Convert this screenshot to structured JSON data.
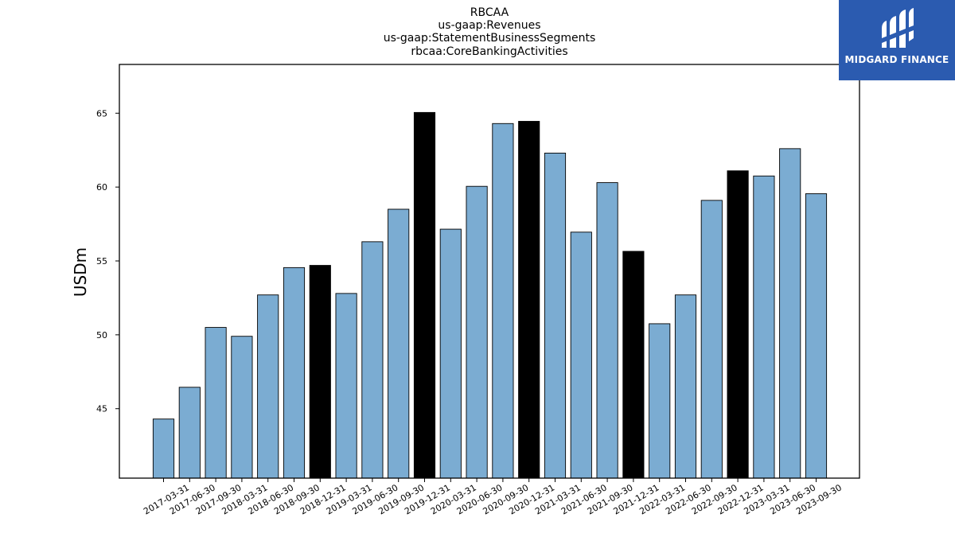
{
  "chart_data": {
    "type": "bar",
    "title_lines": [
      "RBCAA",
      "us-gaap:Revenues",
      "us-gaap:StatementBusinessSegments",
      "rbcaa:CoreBankingActivities"
    ],
    "xlabel": "",
    "ylabel": "USDm",
    "ylim": [
      40.3,
      68.3
    ],
    "yticks": [
      45,
      50,
      55,
      60,
      65
    ],
    "grid": false,
    "categories": [
      "2017-03-31",
      "2017-06-30",
      "2017-09-30",
      "2018-03-31",
      "2018-06-30",
      "2018-09-30",
      "2018-12-31",
      "2019-03-31",
      "2019-06-30",
      "2019-09-30",
      "2019-12-31",
      "2020-03-31",
      "2020-06-30",
      "2020-09-30",
      "2020-12-31",
      "2021-03-31",
      "2021-06-30",
      "2021-09-30",
      "2021-12-31",
      "2022-03-31",
      "2022-06-30",
      "2022-09-30",
      "2022-12-31",
      "2023-03-31",
      "2023-06-30",
      "2023-09-30"
    ],
    "values": [
      44.3,
      46.45,
      50.5,
      49.9,
      52.7,
      54.55,
      54.7,
      52.8,
      56.3,
      58.5,
      65.05,
      57.15,
      60.05,
      64.3,
      64.45,
      62.3,
      56.95,
      60.3,
      55.65,
      50.75,
      52.7,
      59.1,
      61.1,
      60.75,
      62.6,
      59.55
    ],
    "highlight": [
      false,
      false,
      false,
      false,
      false,
      false,
      true,
      false,
      false,
      false,
      true,
      false,
      false,
      false,
      true,
      false,
      false,
      false,
      true,
      false,
      false,
      false,
      true,
      false,
      false,
      false
    ],
    "colors": {
      "bar": "#7bacd2",
      "highlight": "#000000",
      "edge": "#000000"
    }
  },
  "logo": {
    "text": "MIDGARD FINANCE",
    "background": "#2b5bb0"
  }
}
